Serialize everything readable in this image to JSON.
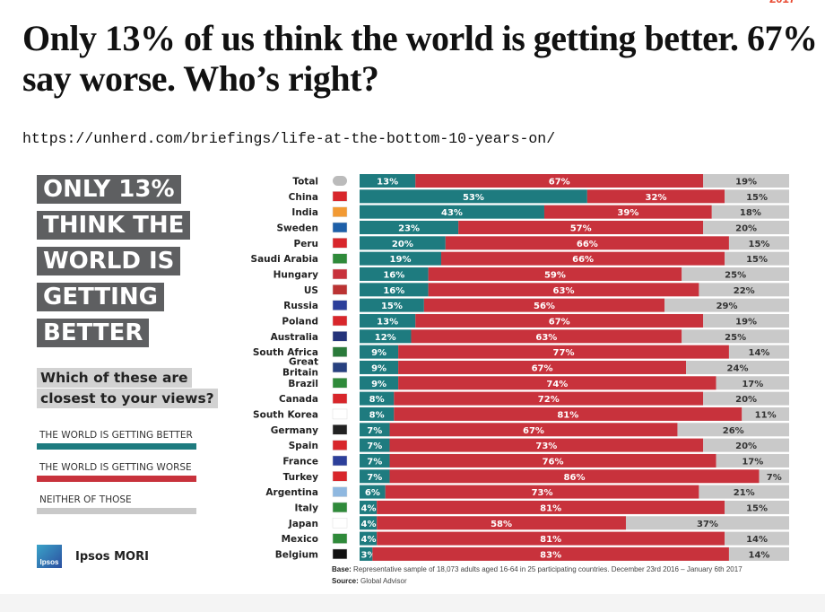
{
  "page": {
    "corner_text": "2017",
    "title": "Only 13% of us think the world is getting better. 67% say worse. Who’s right?",
    "url": "https://unherd.com/briefings/life-at-the-bottom-10-years-on/"
  },
  "infographic": {
    "headline_lines": [
      "ONLY 13%",
      "THINK THE",
      "WORLD IS",
      "GETTING",
      "BETTER"
    ],
    "question_lines": [
      "Which of these are",
      "closest to your views?"
    ],
    "legend": [
      {
        "label": "THE WORLD IS GETTING BETTER",
        "color": "#1e7b7f"
      },
      {
        "label": "THE WORLD IS GETTING WORSE",
        "color": "#c8323c"
      },
      {
        "label": "NEITHER OF THOSE",
        "color": "#c9c9c9"
      }
    ],
    "logo_text": "Ipsos",
    "brand": "Ipsos MORI",
    "footnote_base_label": "Base:",
    "footnote_base": "Representative sample of 18,073 adults aged 16-64 in 25 participating countries. December 23rd 2016 – January 6th 2017",
    "footnote_source_label": "Source:",
    "footnote_source": "Global Advisor"
  },
  "chart_data": {
    "type": "bar",
    "orientation": "horizontal-stacked-100",
    "categories": [
      "Total",
      "China",
      "India",
      "Sweden",
      "Peru",
      "Saudi Arabia",
      "Hungary",
      "US",
      "Russia",
      "Poland",
      "Australia",
      "South Africa",
      "Great Britain",
      "Brazil",
      "Canada",
      "South Korea",
      "Germany",
      "Spain",
      "France",
      "Turkey",
      "Argentina",
      "Italy",
      "Japan",
      "Mexico",
      "Belgium"
    ],
    "flag_icons": [
      "globe-icon",
      "china-flag-icon",
      "india-flag-icon",
      "sweden-flag-icon",
      "peru-flag-icon",
      "saudi-arabia-flag-icon",
      "hungary-flag-icon",
      "us-flag-icon",
      "russia-flag-icon",
      "poland-flag-icon",
      "australia-flag-icon",
      "south-africa-flag-icon",
      "great-britain-flag-icon",
      "brazil-flag-icon",
      "canada-flag-icon",
      "south-korea-flag-icon",
      "germany-flag-icon",
      "spain-flag-icon",
      "france-flag-icon",
      "turkey-flag-icon",
      "argentina-flag-icon",
      "italy-flag-icon",
      "japan-flag-icon",
      "mexico-flag-icon",
      "belgium-flag-icon"
    ],
    "series": [
      {
        "name": "THE WORLD IS GETTING BETTER",
        "color": "#1e7b7f",
        "values": [
          13,
          53,
          43,
          23,
          20,
          19,
          16,
          16,
          15,
          13,
          12,
          9,
          9,
          9,
          8,
          8,
          7,
          7,
          7,
          7,
          6,
          4,
          4,
          4,
          3
        ]
      },
      {
        "name": "THE WORLD IS GETTING WORSE",
        "color": "#c8323c",
        "values": [
          67,
          32,
          39,
          57,
          66,
          66,
          59,
          63,
          56,
          67,
          63,
          77,
          67,
          74,
          72,
          81,
          67,
          73,
          76,
          86,
          73,
          81,
          58,
          81,
          83
        ]
      },
      {
        "name": "NEITHER OF THOSE",
        "color": "#c9c9c9",
        "values": [
          19,
          15,
          18,
          20,
          15,
          15,
          25,
          22,
          29,
          19,
          25,
          14,
          24,
          17,
          20,
          11,
          26,
          20,
          17,
          7,
          21,
          15,
          37,
          14,
          14
        ]
      }
    ],
    "value_suffix": "%",
    "grid": false,
    "legend_placement": "left"
  }
}
